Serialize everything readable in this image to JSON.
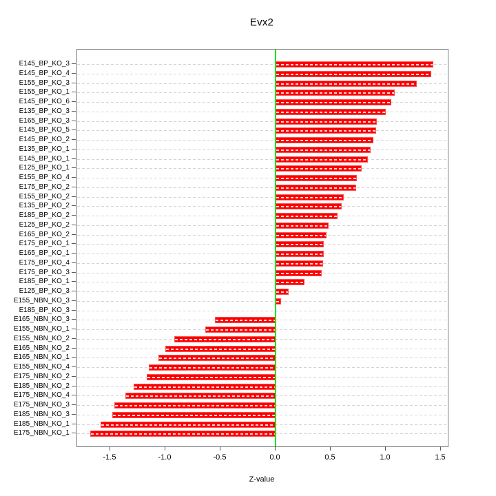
{
  "title": "Evx2",
  "xlabel": "Z-value",
  "chart_data": {
    "type": "bar",
    "orientation": "horizontal",
    "title": "Evx2",
    "xlabel": "Z-value",
    "ylabel": "",
    "legend": null,
    "grid": true,
    "xlim": [
      -1.8,
      1.5625
    ],
    "x_ticks": [
      -1.5,
      -1.0,
      -0.5,
      0.0,
      0.5,
      1.0,
      1.5
    ],
    "categories": [
      "E145_BP_KO_3",
      "E145_BP_KO_4",
      "E155_BP_KO_3",
      "E155_BP_KO_1",
      "E145_BP_KO_6",
      "E135_BP_KO_3",
      "E165_BP_KO_3",
      "E145_BP_KO_5",
      "E145_BP_KO_2",
      "E135_BP_KO_1",
      "E145_BP_KO_1",
      "E125_BP_KO_1",
      "E155_BP_KO_4",
      "E175_BP_KO_2",
      "E155_BP_KO_2",
      "E135_BP_KO_2",
      "E185_BP_KO_2",
      "E125_BP_KO_2",
      "E165_BP_KO_2",
      "E175_BP_KO_1",
      "E165_BP_KO_1",
      "E175_BP_KO_4",
      "E175_BP_KO_3",
      "E185_BP_KO_1",
      "E125_BP_KO_3",
      "E155_NBN_KO_3",
      "E185_BP_KO_3",
      "E165_NBN_KO_3",
      "E155_NBN_KO_1",
      "E155_NBN_KO_2",
      "E165_NBN_KO_2",
      "E165_NBN_KO_1",
      "E155_NBN_KO_4",
      "E175_NBN_KO_2",
      "E185_NBN_KO_2",
      "E175_NBN_KO_4",
      "E175_NBN_KO_3",
      "E185_NBN_KO_3",
      "E185_NBN_KO_1",
      "E175_NBN_KO_1"
    ],
    "values": [
      1.43,
      1.41,
      1.28,
      1.08,
      1.05,
      1.0,
      0.92,
      0.91,
      0.89,
      0.86,
      0.84,
      0.78,
      0.74,
      0.73,
      0.62,
      0.6,
      0.56,
      0.48,
      0.46,
      0.44,
      0.44,
      0.43,
      0.42,
      0.26,
      0.12,
      0.05,
      0.0,
      -0.55,
      -0.64,
      -0.92,
      -1.0,
      -1.06,
      -1.15,
      -1.17,
      -1.29,
      -1.36,
      -1.46,
      -1.48,
      -1.59,
      -1.68
    ],
    "colors": {
      "bar": "#fb0000",
      "bar_edge": "#ff9696",
      "zero_line": "#00e400",
      "grid_line": "#d4d4d4",
      "box": "#7d7d7d",
      "tick": "#5a5a5a",
      "text": "#000000"
    }
  }
}
